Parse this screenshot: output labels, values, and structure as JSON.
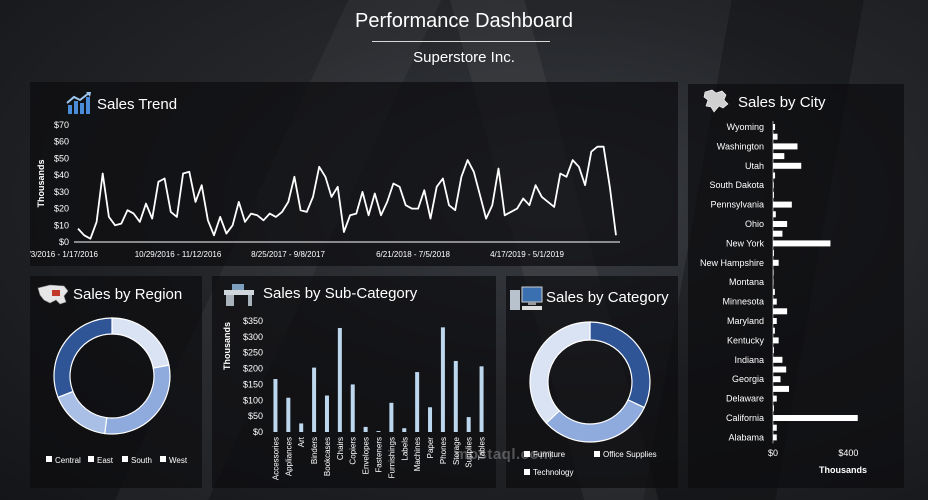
{
  "header": {
    "title": "Performance Dashboard",
    "subtitle": "Superstore Inc."
  },
  "watermark": "mostaql.com",
  "colors": {
    "dark_blue": "#2f5597",
    "mid_blue": "#8faadc",
    "light_blue": "#dae3f3",
    "bar_blue": "#bdd7ee",
    "line_white": "#ffffff"
  },
  "icons": {
    "trend": "chart-trend-icon",
    "region": "us-map-icon",
    "subcategory": "office-desk-icon",
    "category": "computer-icon",
    "city": "state-map-icon"
  },
  "chart_data": [
    {
      "id": "trend",
      "type": "line",
      "title": "Sales Trend",
      "ylabel": "Thousands",
      "ylim": [
        0,
        70
      ],
      "yticks": [
        "$0",
        "$10",
        "$20",
        "$30",
        "$40",
        "$50",
        "$60",
        "$70"
      ],
      "xtick_labels": [
        "1/3/2016 - 1/17/2016",
        "10/29/2016 - 11/12/2016",
        "8/25/2017 - 9/8/2017",
        "6/21/2018 - 7/5/2018",
        "4/17/2019 - 5/1/2019"
      ],
      "values": [
        8,
        4,
        2,
        12,
        41,
        15,
        10,
        11,
        19,
        17,
        12,
        23,
        14,
        36,
        38,
        18,
        15,
        41,
        42,
        24,
        34,
        13,
        4,
        15,
        5,
        10,
        24,
        12,
        17,
        16,
        13,
        17,
        15,
        18,
        24,
        39,
        19,
        18,
        27,
        45,
        39,
        27,
        33,
        6,
        16,
        17,
        30,
        16,
        29,
        16,
        24,
        35,
        33,
        22,
        20,
        20,
        31,
        14,
        33,
        38,
        22,
        19,
        39,
        49,
        42,
        28,
        14,
        22,
        44,
        16,
        18,
        20,
        26,
        22,
        34,
        27,
        24,
        21,
        41,
        39,
        49,
        45,
        34,
        54,
        57,
        57,
        33,
        4
      ]
    },
    {
      "id": "region",
      "type": "pie",
      "title": "Sales by Region",
      "labels": [
        "Central",
        "East",
        "South",
        "West"
      ],
      "values": [
        22,
        30,
        17,
        31
      ],
      "colors": [
        "#dae3f3",
        "#8faadc",
        "#a9bfe6",
        "#2f5597"
      ]
    },
    {
      "id": "subcategory",
      "type": "bar",
      "title": "Sales by Sub-Category",
      "ylabel": "Thousands",
      "ylim": [
        0,
        350
      ],
      "yticks": [
        "$0",
        "$50",
        "$100",
        "$150",
        "$200",
        "$250",
        "$300",
        "$350"
      ],
      "categories": [
        "Accessories",
        "Appliances",
        "Art",
        "Binders",
        "Bookcases",
        "Chairs",
        "Copiers",
        "Envelopes",
        "Fasteners",
        "Furnishings",
        "Labels",
        "Machines",
        "Paper",
        "Phones",
        "Storage",
        "Supplies",
        "Tables"
      ],
      "values": [
        167,
        108,
        27,
        203,
        115,
        328,
        150,
        16,
        3,
        92,
        12,
        189,
        78,
        330,
        224,
        47,
        207
      ]
    },
    {
      "id": "category",
      "type": "pie",
      "title": "Sales by Category",
      "labels": [
        "Furniture",
        "Office Supplies",
        "Technology"
      ],
      "values": [
        32,
        31,
        37
      ],
      "colors": [
        "#2f5597",
        "#8faadc",
        "#dae3f3"
      ]
    },
    {
      "id": "city",
      "type": "bar",
      "orientation": "horizontal",
      "title": "Sales by City",
      "xlabel": "Thousands",
      "xlim": [
        0,
        600
      ],
      "xticks": [
        "$0",
        "$400"
      ],
      "categories": [
        "Wyoming",
        "",
        "Washington",
        "",
        "Utah",
        "",
        "South Dakota",
        "",
        "Pennsylvania",
        "",
        "Ohio",
        "",
        "New York",
        "",
        "New Hampshire",
        "",
        "Montana",
        "",
        "Minnesota",
        "",
        "Maryland",
        "",
        "Kentucky",
        "",
        "Indiana",
        "",
        "Georgia",
        "",
        "Delaware",
        "",
        "California",
        "",
        "Alabama"
      ],
      "values": [
        11,
        24,
        130,
        60,
        150,
        11,
        4,
        5,
        100,
        15,
        75,
        50,
        305,
        5,
        30,
        3,
        2,
        10,
        20,
        75,
        20,
        10,
        30,
        5,
        50,
        70,
        40,
        85,
        20,
        5,
        450,
        20,
        20
      ]
    }
  ]
}
